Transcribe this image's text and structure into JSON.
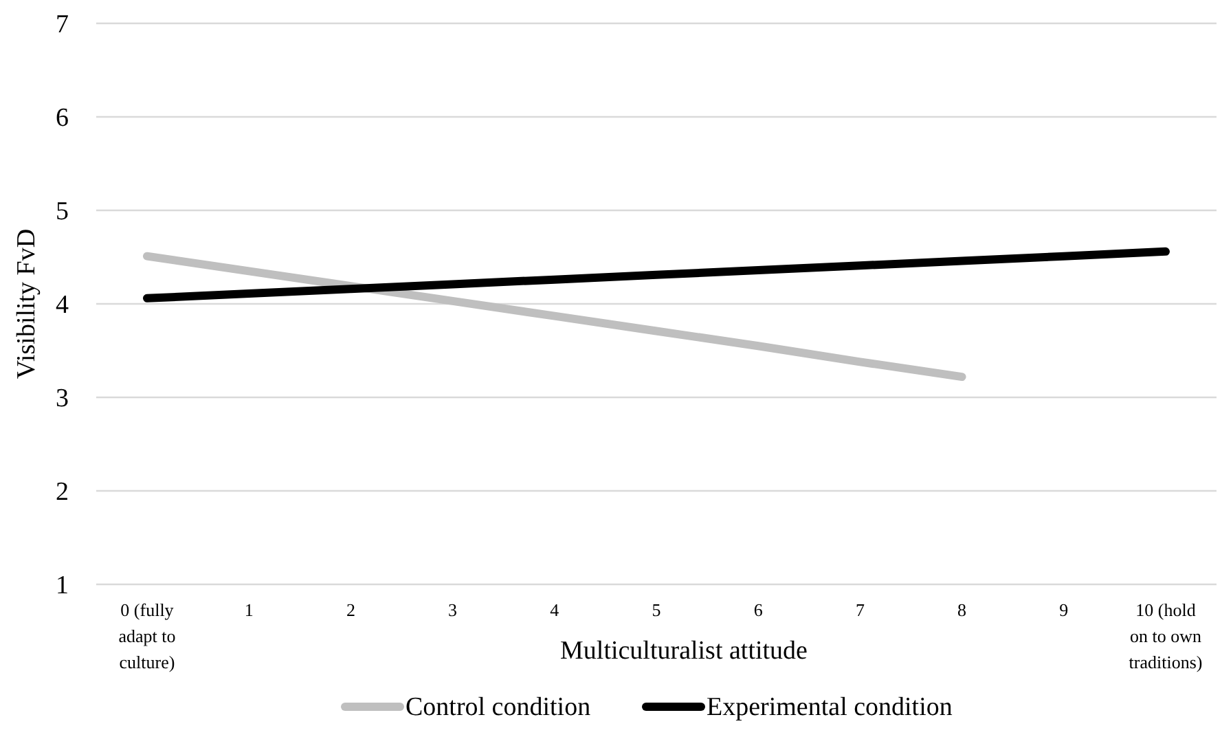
{
  "chart_data": {
    "type": "line",
    "xlabel": "Multiculturalist attitude",
    "ylabel": "Visibility FvD",
    "categories": [
      "0 (fully adapt to culture)",
      "1",
      "2",
      "3",
      "4",
      "5",
      "6",
      "7",
      "8",
      "9",
      "10 (hold on to own traditions)"
    ],
    "series": [
      {
        "name": "Control condition",
        "color": "#bfbfbf",
        "values": [
          4.51,
          4.35,
          4.19,
          4.03,
          3.87,
          3.71,
          3.55,
          3.38,
          3.22,
          null,
          null
        ]
      },
      {
        "name": "Experimental condition",
        "color": "#000000",
        "values": [
          4.06,
          4.11,
          4.16,
          4.21,
          4.26,
          4.31,
          4.36,
          4.41,
          4.46,
          4.51,
          4.56
        ]
      }
    ],
    "ylim": [
      1,
      7
    ],
    "yticks": [
      1,
      2,
      3,
      4,
      5,
      6,
      7
    ],
    "grid": "y",
    "legend": "bottom",
    "marker": "none",
    "line_style": "solid"
  }
}
